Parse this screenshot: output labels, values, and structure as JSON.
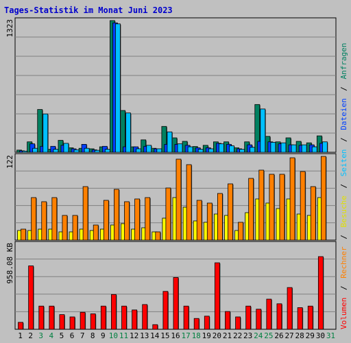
{
  "title": "Tages-Statistik im Monat Juni 2023",
  "colors": {
    "background": "#c0c0c0",
    "title": "#0000cc",
    "anfragen": "#008060",
    "dateien": "#0040ff",
    "seiten": "#00c0ff",
    "besuche": "#ffff00",
    "rechner": "#ff8000",
    "volumen": "#ff0000",
    "weekend_label": "#008040",
    "weekday_label": "#000000"
  },
  "legend": {
    "anfragen": "Anfragen",
    "dateien": "Dateien",
    "seiten": "Seiten",
    "besuche": "Besuche",
    "rechner": "Rechner",
    "volumen": "Volumen",
    "sep": "/"
  },
  "chart_data": [
    {
      "type": "bar",
      "panel": "top",
      "y_axis_label": "1323",
      "ylim": [
        0,
        1323
      ],
      "grid": true,
      "x": [
        1,
        2,
        3,
        4,
        5,
        6,
        7,
        8,
        9,
        10,
        11,
        12,
        13,
        14,
        15,
        16,
        17,
        18,
        19,
        20,
        21,
        22,
        23,
        24,
        25,
        26,
        27,
        28,
        29,
        30,
        31
      ],
      "weekend_days": [
        3,
        4,
        10,
        11,
        17,
        18,
        24,
        25,
        31
      ],
      "series": [
        {
          "name": "Anfragen",
          "color": "#008060",
          "values": [
            22,
            105,
            430,
            30,
            120,
            45,
            40,
            35,
            55,
            1323,
            420,
            55,
            125,
            40,
            260,
            145,
            110,
            58,
            70,
            105,
            105,
            45,
            105,
            480,
            160,
            105,
            145,
            110,
            95,
            165,
            0
          ]
        },
        {
          "name": "Dateien",
          "color": "#0040ff",
          "values": [
            15,
            85,
            60,
            60,
            70,
            35,
            80,
            25,
            60,
            1300,
            55,
            55,
            60,
            35,
            80,
            80,
            70,
            45,
            45,
            90,
            80,
            35,
            75,
            110,
            105,
            85,
            75,
            70,
            75,
            90,
            0
          ]
        },
        {
          "name": "Seiten",
          "color": "#00c0ff",
          "values": [
            12,
            40,
            385,
            30,
            90,
            25,
            40,
            20,
            30,
            1290,
            395,
            35,
            70,
            35,
            205,
            85,
            55,
            30,
            35,
            85,
            65,
            30,
            50,
            435,
            100,
            95,
            75,
            75,
            55,
            105,
            0
          ]
        }
      ]
    },
    {
      "type": "bar",
      "panel": "middle",
      "y_axis_label": "122",
      "ylim": [
        0,
        122
      ],
      "grid": true,
      "x": [
        1,
        2,
        3,
        4,
        5,
        6,
        7,
        8,
        9,
        10,
        11,
        12,
        13,
        14,
        15,
        16,
        17,
        18,
        19,
        20,
        21,
        22,
        23,
        24,
        25,
        26,
        27,
        28,
        29,
        30,
        31
      ],
      "series": [
        {
          "name": "Besuche",
          "color": "#ffff00",
          "values": [
            14,
            14,
            16,
            16,
            12,
            12,
            16,
            14,
            16,
            22,
            24,
            16,
            18,
            12,
            32,
            62,
            48,
            28,
            26,
            38,
            36,
            14,
            40,
            60,
            54,
            46,
            60,
            38,
            36,
            62,
            0
          ]
        },
        {
          "name": "Rechner",
          "color": "#ff8000",
          "values": [
            16,
            62,
            56,
            62,
            36,
            36,
            78,
            22,
            58,
            74,
            56,
            60,
            62,
            12,
            76,
            118,
            110,
            58,
            54,
            68,
            82,
            26,
            90,
            102,
            96,
            96,
            120,
            100,
            78,
            122,
            0
          ]
        }
      ]
    },
    {
      "type": "bar",
      "panel": "bottom",
      "y_axis_label": "958.08 KB",
      "ylim": [
        0,
        1100
      ],
      "grid": true,
      "x": [
        1,
        2,
        3,
        4,
        5,
        6,
        7,
        8,
        9,
        10,
        11,
        12,
        13,
        14,
        15,
        16,
        17,
        18,
        19,
        20,
        21,
        22,
        23,
        24,
        25,
        26,
        27,
        28,
        29,
        30,
        31
      ],
      "series": [
        {
          "name": "Volumen",
          "color": "#ff0000",
          "values": [
            90,
            820,
            300,
            300,
            190,
            160,
            220,
            200,
            300,
            450,
            300,
            250,
            320,
            60,
            490,
            670,
            300,
            140,
            170,
            860,
            230,
            160,
            300,
            260,
            390,
            330,
            540,
            280,
            300,
            940,
            0
          ]
        }
      ]
    }
  ],
  "x_labels": [
    "1",
    "2",
    "3",
    "4",
    "5",
    "6",
    "7",
    "8",
    "9",
    "10",
    "11",
    "12",
    "13",
    "14",
    "15",
    "16",
    "17",
    "18",
    "19",
    "20",
    "21",
    "22",
    "23",
    "24",
    "25",
    "26",
    "27",
    "28",
    "29",
    "30",
    "31"
  ]
}
